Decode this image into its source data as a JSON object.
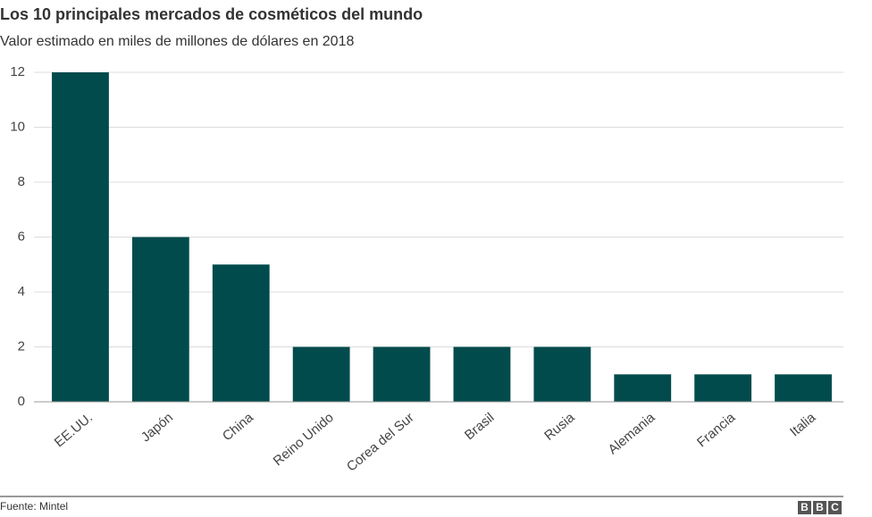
{
  "chart_data": {
    "type": "bar",
    "title": "Los 10 principales mercados de cosméticos del mundo",
    "subtitle": "Valor estimado en miles de millones de dólares en 2018",
    "categories": [
      "EE.UU.",
      "Japón",
      "China",
      "Reino Unido",
      "Corea del Sur",
      "Brasil",
      "Rusia",
      "Alemania",
      "Francia",
      "Italia"
    ],
    "values": [
      12,
      6,
      5,
      2,
      2,
      2,
      2,
      1,
      1,
      1
    ],
    "color": "#024b4d",
    "ylim": [
      0,
      12
    ],
    "yticks": [
      0,
      2,
      4,
      6,
      8,
      10,
      12
    ],
    "grid": true,
    "source": "Fuente: Mintel"
  },
  "logo": [
    "B",
    "B",
    "C"
  ]
}
